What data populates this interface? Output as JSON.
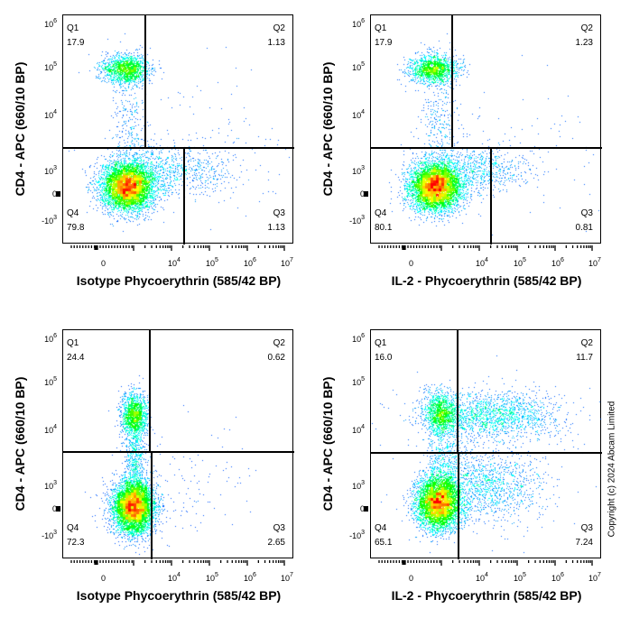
{
  "chart_data": [
    {
      "type": "scatter",
      "subtype": "flow-cytometry-density-dot-plot",
      "xlabel": "Isotype Phycoerythrin (585/42 BP)",
      "ylabel": "CD4 - APC (660/10 BP)",
      "x_scale": "logicle",
      "y_scale": "logicle",
      "x_ticks": [
        {
          "base": "0",
          "exp": ""
        },
        {
          "base": "10",
          "exp": "4"
        },
        {
          "base": "10",
          "exp": "5"
        },
        {
          "base": "10",
          "exp": "6"
        },
        {
          "base": "10",
          "exp": "7"
        }
      ],
      "y_ticks": [
        {
          "base": "10",
          "exp": "6"
        },
        {
          "base": "10",
          "exp": "5"
        },
        {
          "base": "10",
          "exp": "4"
        },
        {
          "base": "10",
          "exp": "3"
        },
        {
          "base": "0",
          "exp": ""
        },
        {
          "base": "-10",
          "exp": "3"
        }
      ],
      "quadrants": [
        {
          "label": "Q1",
          "value": "17.9"
        },
        {
          "label": "Q2",
          "value": "1.13"
        },
        {
          "label": "Q3",
          "value": "1.13"
        },
        {
          "label": "Q4",
          "value": "79.8"
        }
      ]
    },
    {
      "type": "scatter",
      "subtype": "flow-cytometry-density-dot-plot",
      "xlabel": "IL-2 - Phycoerythrin (585/42 BP)",
      "ylabel": "CD4 - APC (660/10 BP)",
      "x_scale": "logicle",
      "y_scale": "logicle",
      "x_ticks": [
        {
          "base": "0",
          "exp": ""
        },
        {
          "base": "10",
          "exp": "4"
        },
        {
          "base": "10",
          "exp": "5"
        },
        {
          "base": "10",
          "exp": "6"
        },
        {
          "base": "10",
          "exp": "7"
        }
      ],
      "y_ticks": [
        {
          "base": "10",
          "exp": "6"
        },
        {
          "base": "10",
          "exp": "5"
        },
        {
          "base": "10",
          "exp": "4"
        },
        {
          "base": "10",
          "exp": "3"
        },
        {
          "base": "0",
          "exp": ""
        },
        {
          "base": "-10",
          "exp": "3"
        }
      ],
      "quadrants": [
        {
          "label": "Q1",
          "value": "17.9"
        },
        {
          "label": "Q2",
          "value": "1.23"
        },
        {
          "label": "Q3",
          "value": "0.81"
        },
        {
          "label": "Q4",
          "value": "80.1"
        }
      ]
    },
    {
      "type": "scatter",
      "subtype": "flow-cytometry-density-dot-plot",
      "xlabel": "Isotype Phycoerythrin (585/42 BP)",
      "ylabel": "CD4 - APC (660/10 BP)",
      "x_scale": "logicle",
      "y_scale": "logicle",
      "x_ticks": [
        {
          "base": "0",
          "exp": ""
        },
        {
          "base": "10",
          "exp": "4"
        },
        {
          "base": "10",
          "exp": "5"
        },
        {
          "base": "10",
          "exp": "6"
        },
        {
          "base": "10",
          "exp": "7"
        }
      ],
      "y_ticks": [
        {
          "base": "10",
          "exp": "6"
        },
        {
          "base": "10",
          "exp": "5"
        },
        {
          "base": "10",
          "exp": "4"
        },
        {
          "base": "10",
          "exp": "3"
        },
        {
          "base": "0",
          "exp": ""
        },
        {
          "base": "-10",
          "exp": "3"
        }
      ],
      "quadrants": [
        {
          "label": "Q1",
          "value": "24.4"
        },
        {
          "label": "Q2",
          "value": "0.62"
        },
        {
          "label": "Q3",
          "value": "2.65"
        },
        {
          "label": "Q4",
          "value": "72.3"
        }
      ]
    },
    {
      "type": "scatter",
      "subtype": "flow-cytometry-density-dot-plot",
      "xlabel": "IL-2 - Phycoerythrin (585/42 BP)",
      "ylabel": "CD4 - APC (660/10 BP)",
      "x_scale": "logicle",
      "y_scale": "logicle",
      "x_ticks": [
        {
          "base": "0",
          "exp": ""
        },
        {
          "base": "10",
          "exp": "4"
        },
        {
          "base": "10",
          "exp": "5"
        },
        {
          "base": "10",
          "exp": "6"
        },
        {
          "base": "10",
          "exp": "7"
        }
      ],
      "y_ticks": [
        {
          "base": "10",
          "exp": "6"
        },
        {
          "base": "10",
          "exp": "5"
        },
        {
          "base": "10",
          "exp": "4"
        },
        {
          "base": "10",
          "exp": "3"
        },
        {
          "base": "0",
          "exp": ""
        },
        {
          "base": "-10",
          "exp": "3"
        }
      ],
      "quadrants": [
        {
          "label": "Q1",
          "value": "16.0"
        },
        {
          "label": "Q2",
          "value": "11.7"
        },
        {
          "label": "Q3",
          "value": "7.24"
        },
        {
          "label": "Q4",
          "value": "65.1"
        }
      ]
    }
  ],
  "density_colormap": [
    "#0000ff",
    "#00ffff",
    "#00ff00",
    "#ffff00",
    "#ff0000"
  ],
  "copyright": "Copyright (c) 2024 Abcam Limited"
}
